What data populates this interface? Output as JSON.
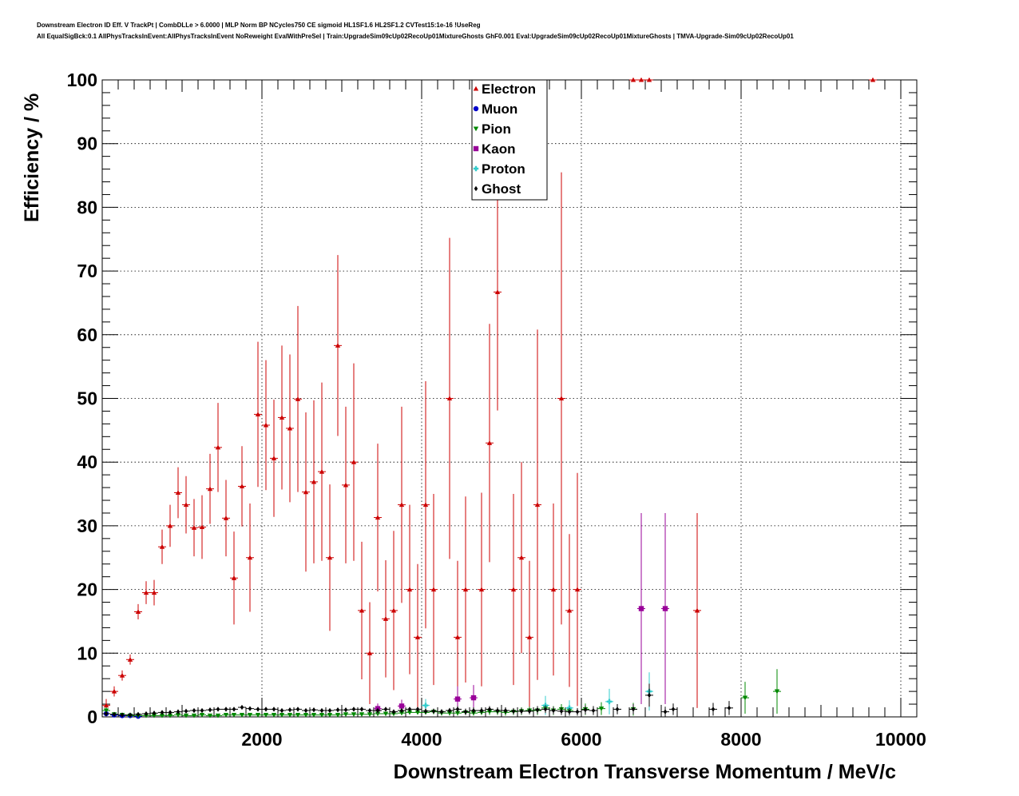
{
  "header": {
    "title_line1": "Downstream Electron ID Eff. V TrackPt | CombDLLe > 6.0000 | MLP Norm BP NCycles750 CE sigmoid HL1SF1.6 HL2SF1.2 CVTest15:1e-16 !UseReg",
    "title_line2": "All EqualSigBck:0.1 AllPhysTracksInEvent:AllPhysTracksInEvent NoReweight EvalWithPreSel | Train:UpgradeSim09cUp02RecoUp01MixtureGhosts GhF0.001 Eval:UpgradeSim09cUp02RecoUp01MixtureGhosts | TMVA-Upgrade-Sim09cUp02RecoUp01"
  },
  "chart_data": {
    "type": "scatter",
    "title": "",
    "xlabel": "Downstream Electron Transverse Momentum / MeV/c",
    "ylabel": "Efficiency / %",
    "xlim": [
      0,
      10200
    ],
    "ylim": [
      0,
      100
    ],
    "x_ticks": [
      2000,
      4000,
      6000,
      8000,
      10000
    ],
    "y_ticks": [
      0,
      10,
      20,
      30,
      40,
      50,
      60,
      70,
      80,
      90,
      100
    ],
    "grid": true,
    "legend_position": "top-center",
    "series": [
      {
        "name": "Electron",
        "color": "#cc0000",
        "marker": "triangle-up",
        "points": [
          [
            50,
            1.8,
            1.0
          ],
          [
            150,
            4.0,
            0.8
          ],
          [
            250,
            6.5,
            0.8
          ],
          [
            350,
            9.0,
            0.8
          ],
          [
            450,
            16.5,
            1.2
          ],
          [
            550,
            19.5,
            1.8
          ],
          [
            650,
            19.5,
            2.0
          ],
          [
            750,
            26.7,
            2.7
          ],
          [
            850,
            30.0,
            3.3
          ],
          [
            950,
            35.2,
            4.0
          ],
          [
            1050,
            33.3,
            4.5
          ],
          [
            1150,
            29.7,
            4.5
          ],
          [
            1250,
            29.8,
            5.0
          ],
          [
            1350,
            35.8,
            5.5
          ],
          [
            1450,
            42.3,
            7.0
          ],
          [
            1550,
            31.2,
            6.0
          ],
          [
            1650,
            21.8,
            7.3
          ],
          [
            1750,
            36.2,
            6.3
          ],
          [
            1850,
            25.0,
            8.5
          ],
          [
            1950,
            47.5,
            11.4
          ],
          [
            2050,
            45.8,
            10.2
          ],
          [
            2150,
            40.6,
            9.2
          ],
          [
            2250,
            47.0,
            11.3
          ],
          [
            2350,
            45.3,
            11.6
          ],
          [
            2450,
            49.9,
            14.6
          ],
          [
            2550,
            35.3,
            12.5
          ],
          [
            2650,
            36.9,
            12.8
          ],
          [
            2750,
            38.5,
            14.0
          ],
          [
            2850,
            25.0,
            11.5
          ],
          [
            2950,
            58.3,
            14.2
          ],
          [
            3050,
            36.4,
            12.3
          ],
          [
            3150,
            40.0,
            15.5
          ],
          [
            3250,
            16.7,
            10.8
          ],
          [
            3350,
            10.0,
            8.0
          ],
          [
            3450,
            31.3,
            11.6
          ],
          [
            3550,
            15.4,
            9.2
          ],
          [
            3650,
            16.7,
            12.5
          ],
          [
            3750,
            33.3,
            15.4
          ],
          [
            3850,
            20.0,
            13.3
          ],
          [
            3950,
            12.5,
            11.5
          ],
          [
            4050,
            33.3,
            19.4
          ],
          [
            4150,
            20.0,
            15.0
          ],
          [
            4350,
            50.0,
            25.2
          ],
          [
            4450,
            12.5,
            12.0
          ],
          [
            4550,
            20.0,
            14.6
          ],
          [
            4750,
            20.0,
            15.2
          ],
          [
            4850,
            43.0,
            18.7
          ],
          [
            4950,
            66.7,
            18.6
          ],
          [
            5150,
            20.0,
            15.0
          ],
          [
            5250,
            25.0,
            15.0
          ],
          [
            5350,
            12.5,
            12.0
          ],
          [
            5450,
            33.3,
            27.5
          ],
          [
            5650,
            20.0,
            13.5
          ],
          [
            5750,
            50.0,
            35.5
          ],
          [
            5850,
            16.7,
            12.0
          ],
          [
            5950,
            20.0,
            18.3
          ],
          [
            6650,
            100.0,
            0
          ],
          [
            6750,
            100.0,
            0
          ],
          [
            6850,
            100.0,
            0
          ],
          [
            7450,
            16.7,
            15.3
          ],
          [
            9650,
            100.0,
            0
          ]
        ]
      },
      {
        "name": "Muon",
        "color": "#0000cc",
        "marker": "circle",
        "points": [
          [
            50,
            0.5,
            0.2
          ],
          [
            150,
            0.3,
            0.1
          ],
          [
            250,
            0.2,
            0.1
          ],
          [
            350,
            0.2,
            0.1
          ],
          [
            450,
            0.1,
            0.1
          ]
        ]
      },
      {
        "name": "Pion",
        "color": "#008800",
        "marker": "triangle-down",
        "points": [
          [
            50,
            1.0,
            0.5
          ],
          [
            150,
            0.4,
            0.2
          ],
          [
            250,
            0.3,
            0.1
          ],
          [
            350,
            0.2,
            0.1
          ],
          [
            450,
            0.2,
            0.1
          ],
          [
            550,
            0.2,
            0.1
          ],
          [
            650,
            0.2,
            0.1
          ],
          [
            750,
            0.2,
            0.1
          ],
          [
            850,
            0.2,
            0.1
          ],
          [
            950,
            0.3,
            0.1
          ],
          [
            1050,
            0.2,
            0.1
          ],
          [
            1150,
            0.2,
            0.1
          ],
          [
            1250,
            0.3,
            0.1
          ],
          [
            1350,
            0.2,
            0.1
          ],
          [
            1450,
            0.2,
            0.1
          ],
          [
            1550,
            0.3,
            0.1
          ],
          [
            1650,
            0.3,
            0.1
          ],
          [
            1750,
            0.3,
            0.1
          ],
          [
            1850,
            0.3,
            0.1
          ],
          [
            1950,
            0.3,
            0.1
          ],
          [
            2050,
            0.3,
            0.1
          ],
          [
            2150,
            0.3,
            0.1
          ],
          [
            2250,
            0.3,
            0.1
          ],
          [
            2350,
            0.3,
            0.1
          ],
          [
            2450,
            0.3,
            0.1
          ],
          [
            2550,
            0.3,
            0.1
          ],
          [
            2650,
            0.3,
            0.1
          ],
          [
            2750,
            0.3,
            0.1
          ],
          [
            2850,
            0.3,
            0.1
          ],
          [
            2950,
            0.3,
            0.1
          ],
          [
            3050,
            0.4,
            0.2
          ],
          [
            3150,
            0.4,
            0.2
          ],
          [
            3250,
            0.4,
            0.2
          ],
          [
            3350,
            0.4,
            0.2
          ],
          [
            3450,
            0.5,
            0.2
          ],
          [
            3550,
            0.5,
            0.2
          ],
          [
            3650,
            0.5,
            0.2
          ],
          [
            3750,
            0.6,
            0.3
          ],
          [
            3850,
            0.7,
            0.3
          ],
          [
            3950,
            0.7,
            0.3
          ],
          [
            4050,
            0.7,
            0.3
          ],
          [
            4150,
            0.8,
            0.4
          ],
          [
            4250,
            0.6,
            0.4
          ],
          [
            4350,
            0.6,
            0.4
          ],
          [
            4450,
            0.6,
            0.4
          ],
          [
            4550,
            0.7,
            0.4
          ],
          [
            4650,
            0.6,
            0.4
          ],
          [
            4750,
            0.7,
            0.4
          ],
          [
            4850,
            0.8,
            0.5
          ],
          [
            4950,
            0.8,
            0.5
          ],
          [
            5050,
            0.7,
            0.5
          ],
          [
            5150,
            0.8,
            0.5
          ],
          [
            5250,
            0.9,
            0.6
          ],
          [
            5350,
            1.0,
            0.6
          ],
          [
            5450,
            1.0,
            0.7
          ],
          [
            5550,
            1.4,
            0.8
          ],
          [
            5650,
            1.0,
            0.7
          ],
          [
            5750,
            1.2,
            0.8
          ],
          [
            5850,
            1.0,
            0.8
          ],
          [
            6050,
            1.2,
            0.9
          ],
          [
            6250,
            1.3,
            1.0
          ],
          [
            6650,
            1.2,
            1.0
          ],
          [
            8050,
            3.0,
            2.5
          ],
          [
            8450,
            4.0,
            3.5
          ]
        ]
      },
      {
        "name": "Kaon",
        "color": "#990099",
        "marker": "square",
        "points": [
          [
            3450,
            1.3,
            0.8
          ],
          [
            3750,
            1.7,
            1.0
          ],
          [
            4450,
            2.8,
            2.0
          ],
          [
            4650,
            3.0,
            2.0
          ],
          [
            6750,
            17.0,
            15.0
          ],
          [
            7050,
            17.0,
            15.0
          ]
        ]
      },
      {
        "name": "Proton",
        "color": "#33cccc",
        "marker": "cross",
        "points": [
          [
            4050,
            1.8,
            1.0
          ],
          [
            5550,
            1.8,
            1.5
          ],
          [
            5850,
            1.4,
            1.2
          ],
          [
            6350,
            2.4,
            2.0
          ],
          [
            6850,
            4.0,
            3.0
          ]
        ]
      },
      {
        "name": "Ghost",
        "color": "#000000",
        "marker": "diamond",
        "points": [
          [
            50,
            0.5,
            0.2
          ],
          [
            150,
            0.4,
            0.1
          ],
          [
            250,
            0.3,
            0.1
          ],
          [
            350,
            0.3,
            0.1
          ],
          [
            450,
            0.4,
            0.1
          ],
          [
            550,
            0.5,
            0.1
          ],
          [
            650,
            0.6,
            0.1
          ],
          [
            750,
            0.7,
            0.1
          ],
          [
            850,
            0.7,
            0.1
          ],
          [
            950,
            0.8,
            0.1
          ],
          [
            1050,
            0.9,
            0.1
          ],
          [
            1150,
            1.0,
            0.1
          ],
          [
            1250,
            1.0,
            0.1
          ],
          [
            1350,
            1.1,
            0.1
          ],
          [
            1450,
            1.2,
            0.1
          ],
          [
            1550,
            1.2,
            0.1
          ],
          [
            1650,
            1.2,
            0.1
          ],
          [
            1750,
            1.5,
            0.2
          ],
          [
            1850,
            1.3,
            0.2
          ],
          [
            1950,
            1.2,
            0.2
          ],
          [
            2050,
            1.2,
            0.2
          ],
          [
            2150,
            1.2,
            0.2
          ],
          [
            2250,
            1.0,
            0.2
          ],
          [
            2350,
            1.1,
            0.2
          ],
          [
            2450,
            1.2,
            0.2
          ],
          [
            2550,
            1.0,
            0.2
          ],
          [
            2650,
            1.1,
            0.2
          ],
          [
            2750,
            1.0,
            0.2
          ],
          [
            2850,
            1.0,
            0.2
          ],
          [
            2950,
            1.1,
            0.2
          ],
          [
            3050,
            1.1,
            0.2
          ],
          [
            3150,
            1.2,
            0.3
          ],
          [
            3250,
            1.2,
            0.3
          ],
          [
            3350,
            1.0,
            0.3
          ],
          [
            3450,
            1.0,
            0.3
          ],
          [
            3550,
            1.2,
            0.3
          ],
          [
            3650,
            0.8,
            0.3
          ],
          [
            3750,
            1.0,
            0.3
          ],
          [
            3850,
            1.2,
            0.3
          ],
          [
            3950,
            1.2,
            0.3
          ],
          [
            4050,
            0.9,
            0.4
          ],
          [
            4150,
            0.9,
            0.4
          ],
          [
            4250,
            0.8,
            0.4
          ],
          [
            4350,
            1.0,
            0.4
          ],
          [
            4450,
            1.2,
            0.5
          ],
          [
            4550,
            0.8,
            0.5
          ],
          [
            4650,
            1.0,
            0.5
          ],
          [
            4750,
            1.0,
            0.5
          ],
          [
            4850,
            1.2,
            0.5
          ],
          [
            4950,
            1.0,
            0.5
          ],
          [
            5050,
            1.0,
            0.5
          ],
          [
            5150,
            0.9,
            0.5
          ],
          [
            5250,
            0.9,
            0.5
          ],
          [
            5350,
            0.9,
            0.5
          ],
          [
            5450,
            1.1,
            0.6
          ],
          [
            5550,
            1.2,
            0.6
          ],
          [
            5650,
            1.0,
            0.6
          ],
          [
            5750,
            0.9,
            0.6
          ],
          [
            5850,
            0.8,
            0.6
          ],
          [
            5950,
            0.8,
            0.6
          ],
          [
            6050,
            1.1,
            0.7
          ],
          [
            6150,
            1.0,
            0.7
          ],
          [
            6450,
            1.2,
            0.8
          ],
          [
            6650,
            1.2,
            0.8
          ],
          [
            6850,
            3.4,
            1.8
          ],
          [
            7050,
            0.8,
            0.8
          ],
          [
            7150,
            1.2,
            0.9
          ],
          [
            7650,
            1.2,
            1.0
          ],
          [
            7850,
            1.4,
            1.1
          ]
        ]
      }
    ]
  }
}
